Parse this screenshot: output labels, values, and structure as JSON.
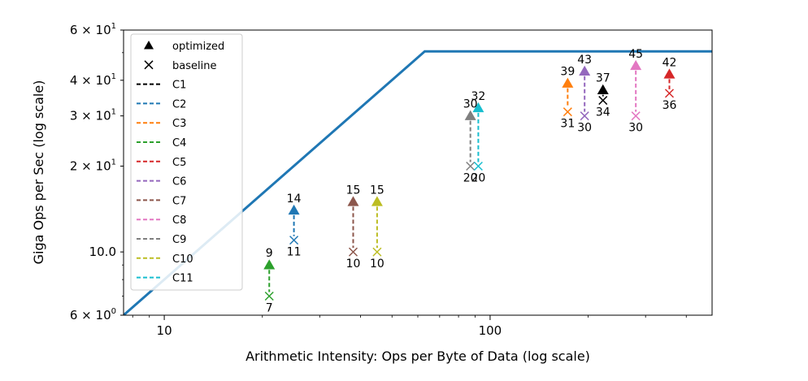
{
  "chart_data": {
    "type": "scatter",
    "xlabel": "Arithmetic Intensity: Ops per Byte of Data (log scale)",
    "ylabel": "Giga Ops per Sec (log scale)",
    "xscale": "log",
    "yscale": "log",
    "xlim": [
      7.5,
      480
    ],
    "ylim": [
      6,
      60
    ],
    "grid": false,
    "legend_placement": "top-left",
    "x_ticks": [
      {
        "value": 10,
        "label": "10"
      },
      {
        "value": 100,
        "label": "100"
      }
    ],
    "y_ticks": [
      {
        "value": 6,
        "label": "6 × 10",
        "sup": "0"
      },
      {
        "value": 10,
        "label": "10.0",
        "sup": ""
      },
      {
        "value": 20,
        "label": "2 × 10",
        "sup": "1"
      },
      {
        "value": 30,
        "label": "3 × 10",
        "sup": "1"
      },
      {
        "value": 40,
        "label": "4 × 10",
        "sup": "1"
      },
      {
        "value": 60,
        "label": "6 × 10",
        "sup": "1"
      }
    ],
    "roofline": {
      "color": "#1f77b4",
      "points": [
        [
          7.5,
          6
        ],
        [
          63,
          50.5
        ],
        [
          480,
          50.5
        ]
      ]
    },
    "legend_markers": [
      {
        "marker": "triangle",
        "label": "optimized"
      },
      {
        "marker": "x",
        "label": "baseline"
      }
    ],
    "series": [
      {
        "name": "C1",
        "color": "#000000",
        "x": 222,
        "baseline": 34,
        "optimized": 37
      },
      {
        "name": "C2",
        "color": "#1f77b4",
        "x": 25,
        "baseline": 11,
        "optimized": 14
      },
      {
        "name": "C3",
        "color": "#ff7f0e",
        "x": 173,
        "baseline": 31,
        "optimized": 39
      },
      {
        "name": "C4",
        "color": "#2ca02c",
        "x": 21,
        "baseline": 7,
        "optimized": 9
      },
      {
        "name": "C5",
        "color": "#d62728",
        "x": 355,
        "baseline": 36,
        "optimized": 42
      },
      {
        "name": "C6",
        "color": "#9467bd",
        "x": 195,
        "baseline": 30,
        "optimized": 43
      },
      {
        "name": "C7",
        "color": "#8c564b",
        "x": 38,
        "baseline": 10,
        "optimized": 15
      },
      {
        "name": "C8",
        "color": "#e377c2",
        "x": 280,
        "baseline": 30,
        "optimized": 45
      },
      {
        "name": "C9",
        "color": "#7f7f7f",
        "x": 87,
        "baseline": 20,
        "optimized": 30
      },
      {
        "name": "C10",
        "color": "#bcbd22",
        "x": 45,
        "baseline": 10,
        "optimized": 15
      },
      {
        "name": "C11",
        "color": "#17becf",
        "x": 92,
        "baseline": 20,
        "optimized": 32
      }
    ]
  }
}
